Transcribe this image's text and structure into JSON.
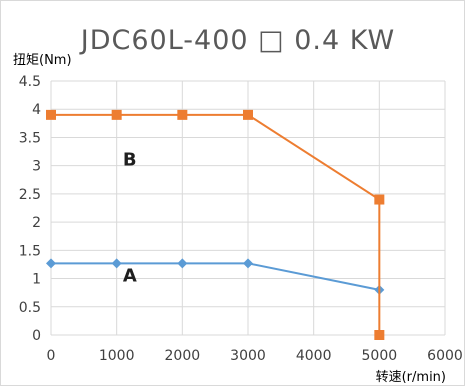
{
  "chart_data": {
    "type": "line",
    "title": "JDC60L-400 □ 0.4 KW",
    "ylabel": "扭矩(Nm)",
    "xlabel": "转速(r/min)",
    "xlim": [
      0,
      6000
    ],
    "ylim": [
      0,
      4.5
    ],
    "x_ticks": [
      0,
      1000,
      2000,
      3000,
      4000,
      5000,
      6000
    ],
    "x_tick_labels": [
      "0",
      "1000",
      "2000",
      "3000",
      "4000",
      "5000",
      "6000"
    ],
    "y_ticks": [
      0,
      0.5,
      1,
      1.5,
      2,
      2.5,
      3,
      3.5,
      4,
      4.5
    ],
    "y_tick_labels": [
      "0",
      "0.5",
      "1",
      "1.5",
      "2",
      "2.5",
      "3",
      "3.5",
      "4",
      "4.5"
    ],
    "grid": true,
    "series": [
      {
        "name": "A",
        "color": "#5b9bd5",
        "marker": "diamond",
        "x": [
          0,
          1000,
          2000,
          3000,
          5000
        ],
        "y": [
          1.27,
          1.27,
          1.27,
          1.27,
          0.8
        ]
      },
      {
        "name": "B",
        "color": "#ed7d31",
        "marker": "square",
        "x": [
          0,
          1000,
          2000,
          3000,
          5000,
          5000
        ],
        "y": [
          3.9,
          3.9,
          3.9,
          3.9,
          2.4,
          0
        ]
      }
    ]
  }
}
